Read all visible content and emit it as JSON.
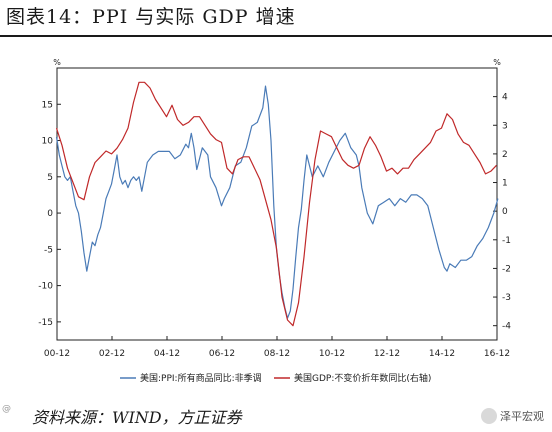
{
  "header": {
    "title": "图表14：PPI 与实际 GDP 增速"
  },
  "footer": {
    "source": "资料来源：WIND，方正证券",
    "wm_left": "@",
    "wm_right": "泽平宏观"
  },
  "chart_data": {
    "type": "line",
    "left_unit": "%",
    "right_unit": "%",
    "x_ticks": [
      "00-12",
      "02-12",
      "04-12",
      "06-12",
      "08-12",
      "10-12",
      "12-12",
      "14-12",
      "16-12"
    ],
    "left_axis": {
      "ticks": [
        "15",
        "10",
        "5",
        "0",
        "-5",
        "-10",
        "-15"
      ],
      "ylim": [
        -17.5,
        20
      ]
    },
    "right_axis": {
      "ticks": [
        "4",
        "3",
        "2",
        "1",
        "0",
        "-1",
        "-2",
        "-3",
        "-4"
      ],
      "ylim": [
        -4.5,
        5
      ]
    },
    "grid": false,
    "legend": "bottom",
    "series": [
      {
        "name": "美国:PPI:所有商品同比:非季调",
        "axis": "left",
        "color": "#4a7bb7",
        "x": [
          2000.9,
          2001.0,
          2001.1,
          2001.2,
          2001.3,
          2001.4,
          2001.5,
          2001.6,
          2001.7,
          2001.8,
          2001.9,
          2002.0,
          2002.1,
          2002.2,
          2002.3,
          2002.4,
          2002.5,
          2002.6,
          2002.7,
          2002.8,
          2002.9,
          2003.0,
          2003.1,
          2003.2,
          2003.3,
          2003.4,
          2003.5,
          2003.6,
          2003.7,
          2003.8,
          2003.9,
          2004.0,
          2004.2,
          2004.4,
          2004.6,
          2004.8,
          2005.0,
          2005.2,
          2005.4,
          2005.6,
          2005.7,
          2005.8,
          2005.9,
          2006.0,
          2006.2,
          2006.4,
          2006.5,
          2006.7,
          2006.9,
          2007.0,
          2007.2,
          2007.4,
          2007.6,
          2007.8,
          2008.0,
          2008.2,
          2008.4,
          2008.5,
          2008.6,
          2008.7,
          2008.8,
          2008.9,
          2009.0,
          2009.1,
          2009.2,
          2009.3,
          2009.4,
          2009.5,
          2009.6,
          2009.7,
          2009.8,
          2009.9,
          2010.0,
          2010.2,
          2010.4,
          2010.6,
          2010.8,
          2011.0,
          2011.2,
          2011.4,
          2011.6,
          2011.8,
          2011.9,
          2012.0,
          2012.2,
          2012.4,
          2012.6,
          2012.8,
          2013.0,
          2013.2,
          2013.4,
          2013.6,
          2013.8,
          2014.0,
          2014.2,
          2014.4,
          2014.6,
          2014.8,
          2015.0,
          2015.1,
          2015.2,
          2015.4,
          2015.6,
          2015.8,
          2016.0,
          2016.2,
          2016.4,
          2016.6,
          2016.8,
          2016.95
        ],
        "values": [
          10.5,
          8.0,
          6.5,
          5.0,
          4.5,
          5.0,
          3.0,
          1.0,
          0.0,
          -2.5,
          -5.5,
          -8.0,
          -6.0,
          -4.0,
          -4.5,
          -3.0,
          -2.0,
          0.0,
          2.0,
          3.0,
          4.0,
          6.0,
          8.0,
          5.0,
          4.0,
          4.5,
          3.5,
          4.5,
          5.0,
          4.5,
          5.0,
          3.0,
          7.0,
          8.0,
          8.5,
          8.5,
          8.5,
          7.5,
          8.0,
          9.5,
          9.0,
          11.0,
          9.0,
          6.0,
          9.0,
          8.0,
          5.0,
          3.5,
          1.0,
          2.0,
          3.5,
          6.5,
          7.0,
          9.0,
          12.0,
          12.5,
          14.5,
          17.5,
          15.0,
          10.0,
          1.0,
          -5.0,
          -8.5,
          -11.0,
          -13.0,
          -14.5,
          -13.5,
          -10.5,
          -6.0,
          -2.0,
          0.5,
          4.5,
          8.0,
          5.0,
          6.5,
          5.0,
          7.0,
          8.5,
          10.0,
          11.0,
          9.0,
          8.0,
          6.5,
          3.5,
          0.0,
          -1.5,
          1.0,
          1.5,
          2.0,
          1.0,
          2.0,
          1.5,
          2.5,
          2.5,
          2.0,
          1.0,
          -2.0,
          -5.0,
          -7.5,
          -8.0,
          -7.0,
          -7.5,
          -6.5,
          -6.5,
          -6.0,
          -4.5,
          -3.5,
          -2.0,
          0.0,
          2.0
        ]
      },
      {
        "name": "美国GDP:不变价折年数同比(右轴)",
        "axis": "right",
        "color": "#c0292a",
        "x": [
          2000.9,
          2001.1,
          2001.3,
          2001.5,
          2001.7,
          2001.9,
          2002.1,
          2002.3,
          2002.5,
          2002.7,
          2002.9,
          2003.1,
          2003.3,
          2003.5,
          2003.7,
          2003.9,
          2004.1,
          2004.3,
          2004.5,
          2004.7,
          2004.9,
          2005.1,
          2005.3,
          2005.5,
          2005.7,
          2005.9,
          2006.1,
          2006.3,
          2006.5,
          2006.7,
          2006.9,
          2007.1,
          2007.3,
          2007.5,
          2007.7,
          2007.9,
          2008.1,
          2008.3,
          2008.5,
          2008.7,
          2008.9,
          2009.1,
          2009.3,
          2009.5,
          2009.7,
          2009.9,
          2010.1,
          2010.3,
          2010.5,
          2010.7,
          2010.9,
          2011.1,
          2011.3,
          2011.5,
          2011.7,
          2011.9,
          2012.1,
          2012.3,
          2012.5,
          2012.7,
          2012.9,
          2013.1,
          2013.3,
          2013.5,
          2013.7,
          2013.9,
          2014.1,
          2014.3,
          2014.5,
          2014.7,
          2014.9,
          2015.1,
          2015.3,
          2015.5,
          2015.7,
          2015.9,
          2016.1,
          2016.3,
          2016.5,
          2016.7,
          2016.9
        ],
        "values": [
          2.9,
          2.3,
          1.5,
          1.0,
          0.5,
          0.4,
          1.2,
          1.7,
          1.9,
          2.1,
          2.0,
          2.2,
          2.5,
          2.9,
          3.8,
          4.5,
          4.5,
          4.3,
          3.9,
          3.6,
          3.3,
          3.7,
          3.2,
          3.0,
          3.1,
          3.3,
          3.3,
          3.0,
          2.7,
          2.5,
          2.4,
          1.5,
          1.3,
          1.8,
          1.9,
          1.9,
          1.5,
          1.1,
          0.4,
          -0.3,
          -1.3,
          -3.0,
          -3.8,
          -4.0,
          -3.2,
          -1.6,
          0.3,
          1.8,
          2.8,
          2.7,
          2.6,
          2.2,
          1.8,
          1.6,
          1.5,
          1.6,
          2.2,
          2.6,
          2.3,
          1.9,
          1.4,
          1.5,
          1.3,
          1.5,
          1.5,
          1.8,
          2.0,
          2.2,
          2.4,
          2.8,
          2.9,
          3.4,
          3.2,
          2.7,
          2.4,
          2.3,
          2.0,
          1.7,
          1.3,
          1.4,
          1.6
        ]
      }
    ]
  }
}
